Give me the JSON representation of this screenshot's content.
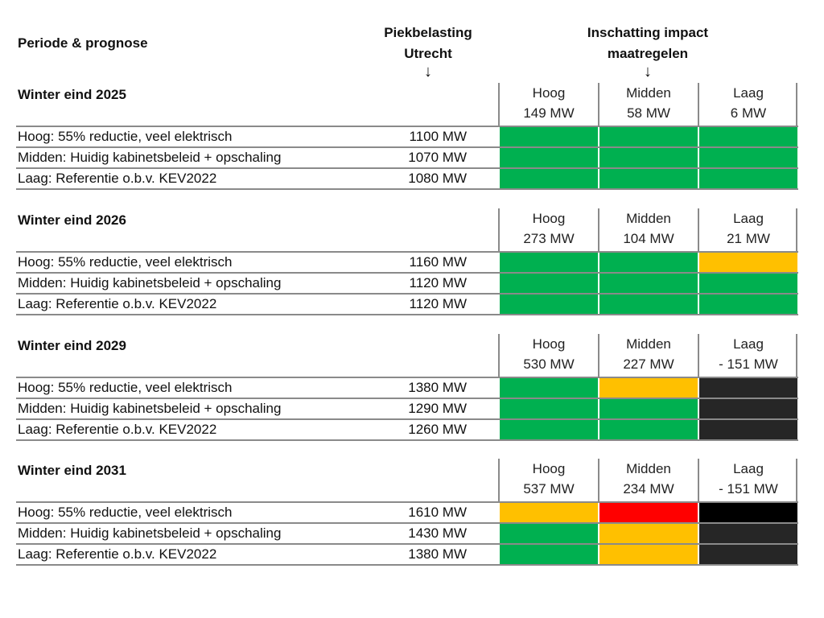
{
  "headers": {
    "periode": "Periode & prognose",
    "piek_line1": "Piekbelasting",
    "piek_line2": "Utrecht",
    "impact_line1": "Inschatting impact",
    "impact_line2": "maatregelen",
    "arrow": "↓"
  },
  "colors": {
    "green": "#00b050",
    "amber": "#ffc000",
    "red": "#ff0000",
    "dark": "#262626",
    "black": "#000000",
    "rule": "#8a8a8a"
  },
  "blocks": [
    {
      "title": "Winter eind 2025",
      "impact": [
        {
          "label": "Hoog",
          "value": "149 MW"
        },
        {
          "label": "Midden",
          "value": "58 MW"
        },
        {
          "label": "Laag",
          "value": "6 MW"
        }
      ],
      "rows": [
        {
          "scenario": "Hoog: 55% reductie, veel elektrisch",
          "load": "1100 MW",
          "status": [
            "green",
            "green",
            "green"
          ]
        },
        {
          "scenario": "Midden: Huidig kabinetsbeleid + opschaling",
          "load": "1070 MW",
          "status": [
            "green",
            "green",
            "green"
          ]
        },
        {
          "scenario": "Laag: Referentie o.b.v. KEV2022",
          "load": "1080 MW",
          "status": [
            "green",
            "green",
            "green"
          ]
        }
      ]
    },
    {
      "title": "Winter eind 2026",
      "impact": [
        {
          "label": "Hoog",
          "value": "273 MW"
        },
        {
          "label": "Midden",
          "value": "104 MW"
        },
        {
          "label": "Laag",
          "value": "21 MW"
        }
      ],
      "rows": [
        {
          "scenario": "Hoog: 55% reductie, veel elektrisch",
          "load": "1160 MW",
          "status": [
            "green",
            "green",
            "amber"
          ]
        },
        {
          "scenario": "Midden: Huidig kabinetsbeleid + opschaling",
          "load": "1120 MW",
          "status": [
            "green",
            "green",
            "green"
          ]
        },
        {
          "scenario": "Laag: Referentie o.b.v. KEV2022",
          "load": "1120 MW",
          "status": [
            "green",
            "green",
            "green"
          ]
        }
      ]
    },
    {
      "title": "Winter eind 2029",
      "impact": [
        {
          "label": "Hoog",
          "value": "530 MW"
        },
        {
          "label": "Midden",
          "value": "227 MW"
        },
        {
          "label": "Laag",
          "value": "- 151 MW"
        }
      ],
      "rows": [
        {
          "scenario": "Hoog: 55% reductie, veel elektrisch",
          "load": "1380 MW",
          "status": [
            "green",
            "amber",
            "dark"
          ]
        },
        {
          "scenario": "Midden: Huidig kabinetsbeleid + opschaling",
          "load": "1290 MW",
          "status": [
            "green",
            "green",
            "dark"
          ]
        },
        {
          "scenario": "Laag: Referentie o.b.v. KEV2022",
          "load": "1260 MW",
          "status": [
            "green",
            "green",
            "dark"
          ]
        }
      ]
    },
    {
      "title": "Winter eind 2031",
      "impact": [
        {
          "label": "Hoog",
          "value": "537 MW"
        },
        {
          "label": "Midden",
          "value": "234 MW"
        },
        {
          "label": "Laag",
          "value": "- 151 MW"
        }
      ],
      "rows": [
        {
          "scenario": "Hoog: 55% reductie, veel elektrisch",
          "load": "1610 MW",
          "status": [
            "amber",
            "red",
            "black"
          ]
        },
        {
          "scenario": "Midden: Huidig kabinetsbeleid + opschaling",
          "load": "1430 MW",
          "status": [
            "green",
            "amber",
            "dark"
          ]
        },
        {
          "scenario": "Laag: Referentie o.b.v. KEV2022",
          "load": "1380 MW",
          "status": [
            "green",
            "amber",
            "dark"
          ]
        }
      ]
    }
  ]
}
